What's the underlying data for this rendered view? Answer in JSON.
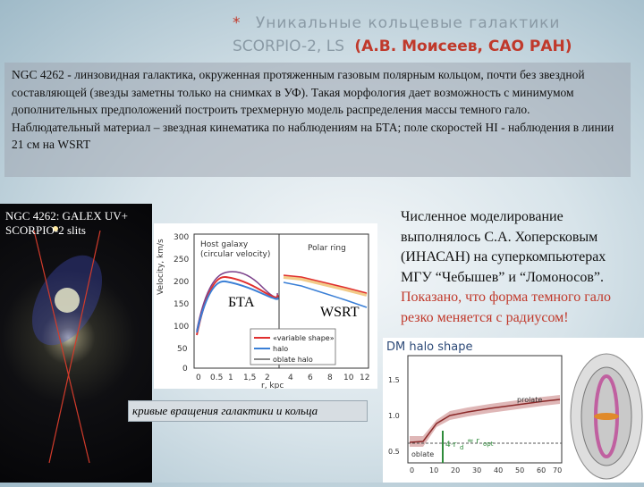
{
  "header": {
    "title_line1": "Уникальные кольцевые галактики",
    "title_line2_left": "SCORPIO-2, LS",
    "title_line2_author": "(А.В. Моисеев, САО РАН)"
  },
  "intro": {
    "paragraph1": "NGC 4262 - линзовидная галактика, окруженная протяженным газовым полярным кольцом, почти без звездной составляющей (звезды заметны только на снимках в УФ). Такая морфология дает возможность с минимумом дополнительных предположений построить трехмерную модель распределения массы темного гало.",
    "paragraph2": "Наблюдательный материал – звездная кинематика по наблюдениям на БТА; поле скоростей HI - наблюдения в линии 21 см на WSRT"
  },
  "galaxy_image": {
    "caption_line1": "NGC 4262: GALEX UV+",
    "caption_line2": "SCORPIO-2 slits"
  },
  "rotation_chart": {
    "label_host": "Host galaxy",
    "label_host_sub": "(circular velocity)",
    "label_ring": "Polar ring",
    "ylabel": "Velocity, km/s",
    "xlabel": "r, kpc",
    "y_ticks": [
      "300",
      "250",
      "200",
      "150",
      "100",
      "50",
      "0"
    ],
    "x_ticks": [
      "0",
      "0.5",
      "1",
      "1,5",
      "2",
      "4",
      "6",
      "8",
      "10",
      "12"
    ],
    "legend": [
      "«variable shape»",
      "halo",
      "oblate halo"
    ],
    "label_bta": "БТА",
    "label_wsrt": "WSRT",
    "caption": "кривые вращения галактики и кольца"
  },
  "modeling_text": {
    "text_black": "Численное моделирование выполнялось С.А. Хоперсковым (ИНАСАН) на суперкомпьютерах МГУ “Чебышев” и “Ломоносов”.",
    "text_red": "Показано, что форма темного гало резко меняется с радиусом!"
  },
  "dm_chart": {
    "title": "DM halo shape",
    "label_prolate": "prolate",
    "label_oblate": "oblate",
    "annotation": "4·r",
    "annotation_sub": "d",
    "annotation2": "≈ r",
    "annotation2_sub": "opt",
    "x_ticks": [
      "0",
      "10",
      "20",
      "30",
      "40",
      "50",
      "60",
      "70"
    ],
    "y_ticks": [
      "1.5",
      "1.0",
      "0.5"
    ]
  },
  "colors": {
    "accent_red": "#c0392b",
    "title_gray": "#8a9aa5"
  }
}
